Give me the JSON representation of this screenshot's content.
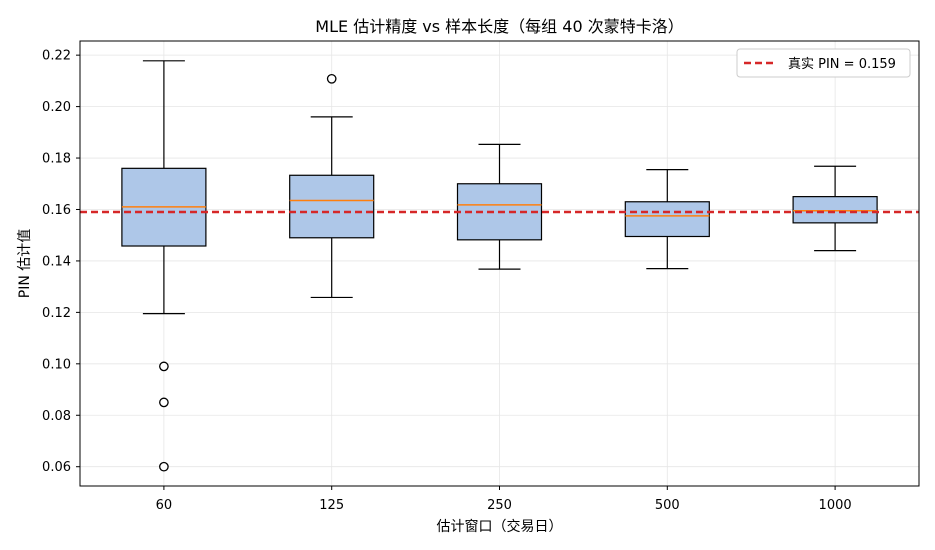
{
  "chart_data": {
    "type": "boxplot",
    "title": "MLE 估计精度 vs 样本长度（每组 40 次蒙特卡洛）",
    "xlabel": "估计窗口（交易日）",
    "ylabel": "PIN 估计值",
    "categories": [
      "60",
      "125",
      "250",
      "500",
      "1000"
    ],
    "boxes": [
      {
        "whisker_low": 0.1195,
        "q1": 0.1458,
        "median": 0.161,
        "q3": 0.176,
        "whisker_high": 0.2178,
        "outliers": [
          0.099,
          0.085,
          0.06
        ]
      },
      {
        "whisker_low": 0.1258,
        "q1": 0.149,
        "median": 0.1635,
        "q3": 0.1733,
        "whisker_high": 0.196,
        "outliers": [
          0.2108
        ]
      },
      {
        "whisker_low": 0.1368,
        "q1": 0.1482,
        "median": 0.1618,
        "q3": 0.17,
        "whisker_high": 0.1853,
        "outliers": []
      },
      {
        "whisker_low": 0.137,
        "q1": 0.1495,
        "median": 0.1575,
        "q3": 0.163,
        "whisker_high": 0.1755,
        "outliers": []
      },
      {
        "whisker_low": 0.144,
        "q1": 0.1548,
        "median": 0.1595,
        "q3": 0.165,
        "whisker_high": 0.1768,
        "outliers": []
      }
    ],
    "reference_line": {
      "value": 0.159,
      "label": "真实 PIN = 0.159",
      "color": "#d62728"
    },
    "yticks": [
      0.06,
      0.08,
      0.1,
      0.12,
      0.14,
      0.16,
      0.18,
      0.2,
      0.22
    ],
    "ylim": [
      0.0525,
      0.2255
    ],
    "grid": true,
    "legend_position": "top-right",
    "box_fill": "#aec7e8",
    "median_color": "#ff7f0e"
  }
}
